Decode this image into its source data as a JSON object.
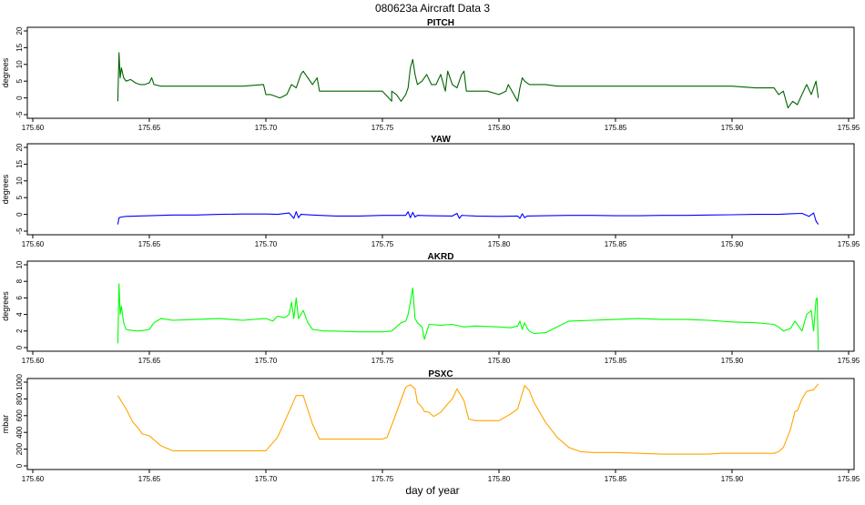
{
  "title": "080623a   Aircraft Data 3",
  "xlabel": "day of year",
  "chart_data": [
    {
      "type": "line",
      "title": "PITCH",
      "ylabel": "degrees",
      "color": "#006400",
      "xlim": [
        175.6,
        175.95
      ],
      "ylim": [
        -5,
        20
      ],
      "xticks": [
        "175.60",
        "175.65",
        "175.70",
        "175.75",
        "175.80",
        "175.85",
        "175.90",
        "175.95"
      ],
      "yticks": [
        "-5",
        "0",
        "5",
        "10",
        "15",
        "20"
      ],
      "x": [
        175.6365,
        175.637,
        175.6375,
        175.638,
        175.639,
        175.64,
        175.642,
        175.644,
        175.646,
        175.648,
        175.65,
        175.651,
        175.652,
        175.655,
        175.66,
        175.67,
        175.68,
        175.69,
        175.699,
        175.7,
        175.702,
        175.706,
        175.709,
        175.711,
        175.713,
        175.715,
        175.716,
        175.718,
        175.72,
        175.722,
        175.723,
        175.73,
        175.74,
        175.75,
        175.754,
        175.754,
        175.756,
        175.758,
        175.76,
        175.761,
        175.762,
        175.763,
        175.764,
        175.765,
        175.767,
        175.769,
        175.771,
        175.773,
        175.775,
        175.777,
        175.778,
        175.78,
        175.782,
        175.784,
        175.785,
        175.786,
        175.79,
        175.795,
        175.8,
        175.803,
        175.804,
        175.808,
        175.809,
        175.81,
        175.811,
        175.813,
        175.815,
        175.82,
        175.825,
        175.83,
        175.84,
        175.85,
        175.86,
        175.87,
        175.88,
        175.89,
        175.895,
        175.9,
        175.91,
        175.917,
        175.918,
        175.92,
        175.922,
        175.924,
        175.926,
        175.928,
        175.93,
        175.932,
        175.934,
        175.936,
        175.937
      ],
      "y": [
        -1,
        13.5,
        6,
        9,
        6,
        5,
        5.5,
        4.5,
        4,
        4,
        4.5,
        6,
        4,
        3.5,
        3.5,
        3.5,
        3.5,
        3.5,
        4,
        1,
        1,
        0,
        1,
        4,
        3,
        7,
        8,
        6,
        4,
        6,
        2,
        2,
        2,
        2,
        -1,
        2,
        1,
        -1,
        1,
        3,
        9,
        11.5,
        7,
        4,
        5,
        7,
        4,
        4,
        7,
        2,
        8,
        4,
        3,
        7,
        8,
        2,
        2,
        2,
        1,
        2,
        4,
        -1,
        3,
        6,
        5,
        4,
        4,
        4,
        3.5,
        3.5,
        3.5,
        3.5,
        3.5,
        3.5,
        3.5,
        3.5,
        3.5,
        3.5,
        3,
        3,
        3,
        1,
        2,
        -3,
        -1,
        -2,
        1,
        4,
        1,
        5,
        0
      ]
    },
    {
      "type": "line",
      "title": "YAW",
      "ylabel": "degrees",
      "color": "#0000ff",
      "xlim": [
        175.6,
        175.95
      ],
      "ylim": [
        -5,
        20
      ],
      "xticks": [
        "175.60",
        "175.65",
        "175.70",
        "175.75",
        "175.80",
        "175.85",
        "175.90",
        "175.95"
      ],
      "yticks": [
        "-5",
        "0",
        "5",
        "10",
        "15",
        "20"
      ],
      "x": [
        175.6365,
        175.637,
        175.638,
        175.64,
        175.645,
        175.65,
        175.66,
        175.67,
        175.68,
        175.69,
        175.7,
        175.705,
        175.71,
        175.712,
        175.713,
        175.714,
        175.715,
        175.72,
        175.73,
        175.74,
        175.75,
        175.76,
        175.761,
        175.762,
        175.763,
        175.764,
        175.765,
        175.77,
        175.78,
        175.782,
        175.783,
        175.784,
        175.79,
        175.8,
        175.808,
        175.809,
        175.81,
        175.811,
        175.812,
        175.82,
        175.83,
        175.84,
        175.85,
        175.86,
        175.87,
        175.88,
        175.89,
        175.9,
        175.91,
        175.92,
        175.925,
        175.93,
        175.933,
        175.935,
        175.936,
        175.937
      ],
      "y": [
        -3,
        -1,
        -0.8,
        -0.6,
        -0.5,
        -0.4,
        -0.2,
        -0.2,
        0,
        0.1,
        0.1,
        0,
        0.4,
        -1.2,
        0.8,
        -1,
        0,
        -0.2,
        -0.5,
        -0.5,
        -0.3,
        -0.3,
        0.8,
        -1,
        0.6,
        -0.8,
        -0.3,
        -0.4,
        -0.5,
        0.3,
        -1.2,
        -0.3,
        -0.5,
        -0.6,
        -0.5,
        -1.2,
        0.2,
        -1,
        -0.5,
        -0.4,
        -0.3,
        -0.3,
        -0.4,
        -0.4,
        -0.3,
        -0.3,
        -0.2,
        -0.1,
        0,
        0,
        0.2,
        0.3,
        -0.6,
        0.4,
        -2,
        -3
      ]
    },
    {
      "type": "line",
      "title": "AKRD",
      "ylabel": "degrees",
      "color": "#00ff00",
      "xlim": [
        175.6,
        175.95
      ],
      "ylim": [
        0,
        10
      ],
      "xticks": [
        "175.60",
        "175.65",
        "175.70",
        "175.75",
        "175.80",
        "175.85",
        "175.90",
        "175.95"
      ],
      "yticks": [
        "0",
        "2",
        "4",
        "6",
        "8",
        "10"
      ],
      "x": [
        175.6365,
        175.637,
        175.6375,
        175.638,
        175.639,
        175.64,
        175.642,
        175.645,
        175.648,
        175.65,
        175.652,
        175.655,
        175.66,
        175.67,
        175.68,
        175.69,
        175.7,
        175.703,
        175.705,
        175.708,
        175.71,
        175.711,
        175.712,
        175.713,
        175.714,
        175.716,
        175.718,
        175.72,
        175.725,
        175.73,
        175.74,
        175.75,
        175.754,
        175.756,
        175.758,
        175.76,
        175.761,
        175.762,
        175.763,
        175.764,
        175.765,
        175.767,
        175.768,
        175.77,
        175.775,
        175.78,
        175.785,
        175.79,
        175.8,
        175.805,
        175.808,
        175.809,
        175.81,
        175.811,
        175.812,
        175.813,
        175.815,
        175.82,
        175.825,
        175.83,
        175.84,
        175.85,
        175.86,
        175.87,
        175.88,
        175.89,
        175.9,
        175.91,
        175.918,
        175.92,
        175.922,
        175.925,
        175.927,
        175.93,
        175.932,
        175.934,
        175.935,
        175.936,
        175.9365,
        175.937
      ],
      "y": [
        0.5,
        7.7,
        4,
        5,
        3,
        2.2,
        2.1,
        2,
        2.1,
        2.2,
        3,
        3.5,
        3.3,
        3.4,
        3.5,
        3.3,
        3.5,
        3.2,
        3.8,
        3.6,
        4,
        5.5,
        3.5,
        6,
        3.5,
        4.5,
        3,
        2.2,
        2,
        2,
        1.9,
        1.9,
        2,
        2.5,
        3,
        3.2,
        4,
        5.5,
        7.2,
        3.5,
        3,
        2.5,
        1,
        2.8,
        2.7,
        2.8,
        2.5,
        2.6,
        2.5,
        2.4,
        2.6,
        3.2,
        2.2,
        3,
        2.4,
        2,
        1.7,
        1.8,
        2.5,
        3.2,
        3.3,
        3.4,
        3.5,
        3.4,
        3.4,
        3.3,
        3.1,
        3,
        2.8,
        2.5,
        2,
        2.3,
        3.2,
        2,
        4,
        4.5,
        2,
        5.8,
        6,
        -0.3
      ]
    },
    {
      "type": "line",
      "title": "PSXC",
      "ylabel": "mbar",
      "color": "#ffa500",
      "xlim": [
        175.6,
        175.95
      ],
      "ylim": [
        0,
        1000
      ],
      "xticks": [
        "175.60",
        "175.65",
        "175.70",
        "175.75",
        "175.80",
        "175.85",
        "175.90",
        "175.95"
      ],
      "yticks": [
        "0",
        "200",
        "400",
        "600",
        "800",
        "1000"
      ],
      "x": [
        175.6365,
        175.64,
        175.643,
        175.645,
        175.647,
        175.65,
        175.655,
        175.66,
        175.68,
        175.7,
        175.705,
        175.71,
        175.713,
        175.716,
        175.72,
        175.723,
        175.73,
        175.74,
        175.75,
        175.752,
        175.755,
        175.76,
        175.762,
        175.764,
        175.765,
        175.767,
        175.768,
        175.77,
        175.772,
        175.775,
        175.778,
        175.78,
        175.782,
        175.785,
        175.787,
        175.79,
        175.795,
        175.8,
        175.805,
        175.808,
        175.811,
        175.813,
        175.815,
        175.82,
        175.825,
        175.83,
        175.835,
        175.84,
        175.85,
        175.86,
        175.87,
        175.88,
        175.89,
        175.895,
        175.9,
        175.91,
        175.918,
        175.92,
        175.922,
        175.925,
        175.927,
        175.928,
        175.93,
        175.932,
        175.935,
        175.937
      ],
      "y": [
        840,
        680,
        520,
        460,
        380,
        360,
        240,
        180,
        180,
        180,
        340,
        650,
        840,
        840,
        500,
        320,
        320,
        320,
        320,
        340,
        560,
        940,
        970,
        920,
        760,
        700,
        650,
        640,
        590,
        640,
        740,
        800,
        920,
        780,
        560,
        540,
        540,
        540,
        620,
        680,
        960,
        900,
        760,
        520,
        340,
        220,
        170,
        160,
        160,
        150,
        140,
        140,
        140,
        150,
        150,
        150,
        150,
        170,
        220,
        430,
        650,
        660,
        800,
        890,
        910,
        980
      ]
    }
  ]
}
